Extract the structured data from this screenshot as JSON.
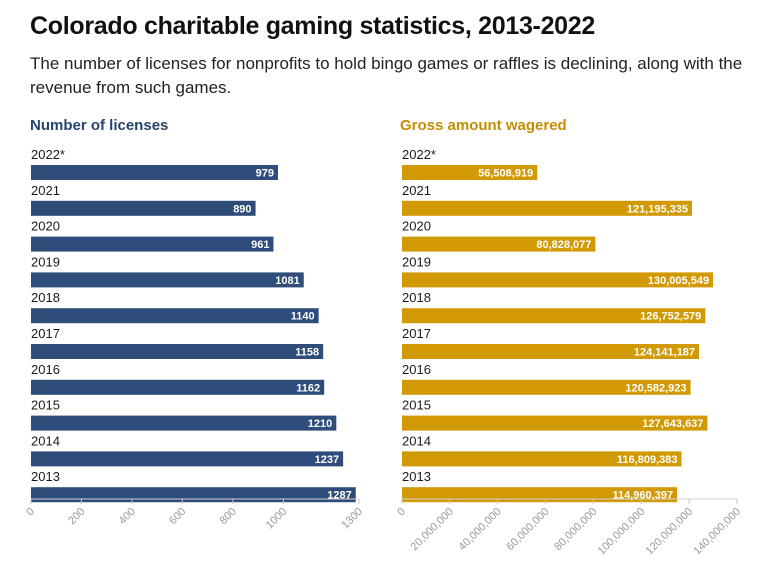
{
  "title": "Colorado charitable gaming statistics, 2013-2022",
  "subtitle": "The number of licenses for nonprofits to hold bingo games or raffles is declining, along with the revenue from such games.",
  "chart_data": [
    {
      "type": "bar",
      "orientation": "horizontal",
      "title": "Number of licenses",
      "color": "#2e4d7b",
      "title_color": "#27436d",
      "categories": [
        "2022*",
        "2021",
        "2020",
        "2019",
        "2018",
        "2017",
        "2016",
        "2015",
        "2014",
        "2013"
      ],
      "values": [
        979,
        890,
        961,
        1081,
        1140,
        1158,
        1162,
        1210,
        1237,
        1287
      ],
      "value_labels": [
        "979",
        "890",
        "961",
        "1081",
        "1140",
        "1158",
        "1162",
        "1210",
        "1237",
        "1287"
      ],
      "xlim": [
        0,
        1300
      ],
      "ticks": [
        0,
        200,
        400,
        600,
        800,
        1000,
        1300
      ],
      "tick_labels": [
        "0",
        "200",
        "400",
        "600",
        "800",
        "1000",
        "1300"
      ],
      "grid": false
    },
    {
      "type": "bar",
      "orientation": "horizontal",
      "title": "Gross amount wagered",
      "color": "#d19a05",
      "title_color": "#c48d06",
      "categories": [
        "2022*",
        "2021",
        "2020",
        "2019",
        "2018",
        "2017",
        "2016",
        "2015",
        "2014",
        "2013"
      ],
      "values": [
        56508919,
        121195335,
        80828077,
        130005549,
        126752579,
        124141187,
        120582923,
        127643637,
        116809383,
        114960397
      ],
      "value_labels": [
        "56,508,919",
        "121,195,335",
        "80,828,077",
        "130,005,549",
        "126,752,579",
        "124,141,187",
        "120,582,923",
        "127,643,637",
        "116,809,383",
        "114,960,397"
      ],
      "xlim": [
        0,
        140000000
      ],
      "ticks": [
        0,
        20000000,
        40000000,
        60000000,
        80000000,
        100000000,
        120000000,
        140000000
      ],
      "tick_labels": [
        "0",
        "20,000,000",
        "40,000,000",
        "60,000,000",
        "80,000,000",
        "100,000,000",
        "120,000,000",
        "140,000,000"
      ],
      "grid": false
    }
  ]
}
